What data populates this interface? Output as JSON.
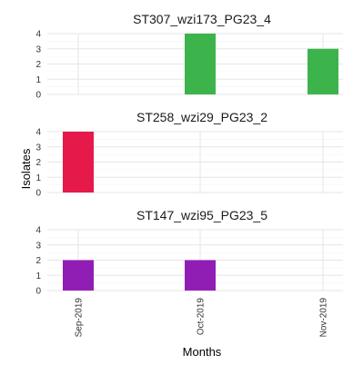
{
  "chart_data": {
    "type": "bar",
    "categories": [
      "Sep-2019",
      "Oct-2019",
      "Nov-2019"
    ],
    "xlabel": "Months",
    "ylabel": "Isolates",
    "ylim": [
      0,
      4
    ],
    "yticks": [
      0,
      1,
      2,
      3,
      4
    ],
    "grid": true,
    "panels": [
      {
        "title": "ST307_wzi173_PG23_4",
        "color": "#3cb44b",
        "values": [
          0,
          4,
          3
        ]
      },
      {
        "title": "ST258_wzi29_PG23_2",
        "color": "#e6194b",
        "values": [
          4,
          0,
          0
        ]
      },
      {
        "title": "ST147_wzi95_PG23_5",
        "color": "#911eb4",
        "values": [
          2,
          2,
          0
        ]
      }
    ]
  }
}
